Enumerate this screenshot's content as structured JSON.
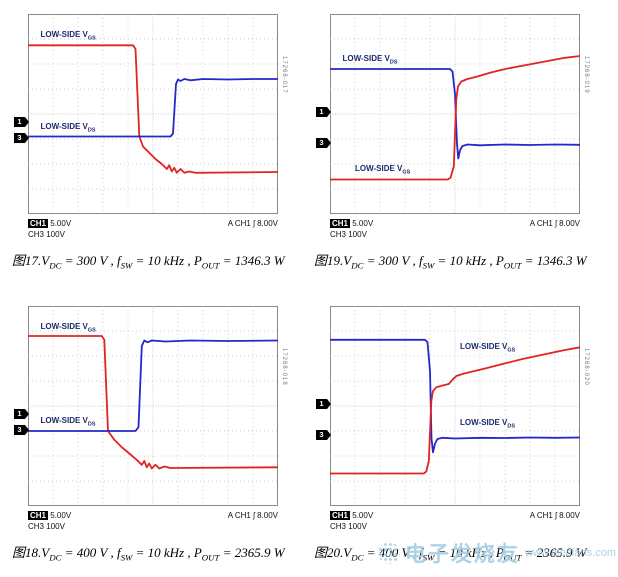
{
  "watermark": {
    "text": "电子发烧友",
    "site": "www.elecfans.com",
    "color": "#a9cfe4"
  },
  "chart_data": [
    {
      "type": "line",
      "figure": "图17",
      "title": "图17. VDC = 300 V , fSW = 10 kHz , POUT = 1346.3 W",
      "caption_segments": [
        {
          "t": "图17.V"
        },
        {
          "sub": "DC"
        },
        {
          "t": " = 300 V , f"
        },
        {
          "sub": "SW"
        },
        {
          "t": " = 10 kHz , P"
        },
        {
          "sub": "OUT"
        },
        {
          "t": " = 1346.3 W"
        }
      ],
      "grid": {
        "x_divisions": 10,
        "y_divisions": 8
      },
      "status": {
        "ch1_label": "CH1",
        "ch1_scale": "5.00V",
        "ch3_scale": "CH3 100V",
        "trigger": "A  CH1 ʃ 8.00V"
      },
      "vertical_code": "17268-017",
      "markers": [
        {
          "label": "1",
          "y_div": 4.3
        },
        {
          "label": "3",
          "y_div": 4.95
        }
      ],
      "trace_labels": [
        {
          "segments": [
            {
              "t": "LOW-SIDE V"
            },
            {
              "sub": "GS"
            }
          ],
          "x_pct": 5,
          "y_pct": 8
        },
        {
          "segments": [
            {
              "t": "LOW-SIDE V"
            },
            {
              "sub": "DS"
            }
          ],
          "x_pct": 5,
          "y_pct": 54
        }
      ],
      "series": [
        {
          "name": "LOW-SIDE VGS (CH1, 5V/div)",
          "color": "#e02424",
          "points_div": [
            [
              0,
              1.25
            ],
            [
              4.2,
              1.25
            ],
            [
              4.3,
              1.4
            ],
            [
              4.45,
              4.9
            ],
            [
              4.6,
              5.3
            ],
            [
              4.85,
              5.55
            ],
            [
              5.1,
              5.8
            ],
            [
              5.35,
              6.0
            ],
            [
              5.55,
              6.2
            ],
            [
              5.65,
              6.05
            ],
            [
              5.75,
              6.3
            ],
            [
              5.85,
              6.15
            ],
            [
              5.95,
              6.35
            ],
            [
              6.1,
              6.2
            ],
            [
              6.25,
              6.35
            ],
            [
              6.45,
              6.3
            ],
            [
              6.7,
              6.35
            ],
            [
              10,
              6.32
            ]
          ]
        },
        {
          "name": "LOW-SIDE VDS (CH3, 100V/div)",
          "color": "#2428c8",
          "points_div": [
            [
              0,
              4.9
            ],
            [
              5.7,
              4.9
            ],
            [
              5.8,
              4.78
            ],
            [
              5.92,
              2.8
            ],
            [
              6.0,
              2.62
            ],
            [
              6.1,
              2.68
            ],
            [
              6.25,
              2.6
            ],
            [
              6.5,
              2.65
            ],
            [
              7,
              2.6
            ],
            [
              8,
              2.62
            ],
            [
              9,
              2.6
            ],
            [
              10,
              2.6
            ]
          ]
        }
      ]
    },
    {
      "type": "line",
      "figure": "图19",
      "title": "图19. VDC = 300 V , fSW = 10 kHz , POUT = 1346.3 W",
      "caption_segments": [
        {
          "t": "图19.V"
        },
        {
          "sub": "DC"
        },
        {
          "t": " = 300 V , f"
        },
        {
          "sub": "SW"
        },
        {
          "t": " = 10 kHz , P"
        },
        {
          "sub": "OUT"
        },
        {
          "t": " = 1346.3 W"
        }
      ],
      "grid": {
        "x_divisions": 10,
        "y_divisions": 8
      },
      "status": {
        "ch1_label": "CH1",
        "ch1_scale": "5.00V",
        "ch3_scale": "CH3 100V",
        "trigger": "A  CH1 ʃ 8.00V"
      },
      "vertical_code": "17268-019",
      "markers": [
        {
          "label": "1",
          "y_div": 3.9
        },
        {
          "label": "3",
          "y_div": 5.15
        }
      ],
      "trace_labels": [
        {
          "segments": [
            {
              "t": "LOW-SIDE V"
            },
            {
              "sub": "DS"
            }
          ],
          "x_pct": 5,
          "y_pct": 20
        },
        {
          "segments": [
            {
              "t": "LOW-SIDE V"
            },
            {
              "sub": "GS"
            }
          ],
          "x_pct": 10,
          "y_pct": 75
        }
      ],
      "series": [
        {
          "name": "LOW-SIDE VDS (CH3, 100V/div)",
          "color": "#2428c8",
          "points_div": [
            [
              0,
              2.2
            ],
            [
              4.8,
              2.2
            ],
            [
              4.9,
              2.3
            ],
            [
              5.0,
              3.2
            ],
            [
              5.08,
              5.2
            ],
            [
              5.13,
              5.78
            ],
            [
              5.2,
              5.45
            ],
            [
              5.3,
              5.28
            ],
            [
              5.5,
              5.22
            ],
            [
              6,
              5.25
            ],
            [
              7,
              5.22
            ],
            [
              8,
              5.24
            ],
            [
              9,
              5.22
            ],
            [
              10,
              5.23
            ]
          ]
        },
        {
          "name": "LOW-SIDE VGS (CH1, 5V/div)",
          "color": "#e02424",
          "points_div": [
            [
              0,
              6.62
            ],
            [
              4.7,
              6.62
            ],
            [
              4.82,
              6.55
            ],
            [
              4.95,
              6.1
            ],
            [
              5.05,
              3.4
            ],
            [
              5.12,
              2.9
            ],
            [
              5.25,
              2.7
            ],
            [
              5.5,
              2.6
            ],
            [
              5.9,
              2.5
            ],
            [
              6.4,
              2.35
            ],
            [
              7.0,
              2.2
            ],
            [
              7.8,
              2.05
            ],
            [
              8.6,
              1.9
            ],
            [
              9.4,
              1.75
            ],
            [
              10,
              1.68
            ]
          ]
        }
      ]
    },
    {
      "type": "line",
      "figure": "图18",
      "title": "图18. VDC = 400 V , fSW = 10 kHz , POUT = 2365.9 W",
      "caption_segments": [
        {
          "t": "图18.V"
        },
        {
          "sub": "DC"
        },
        {
          "t": " = 400 V , f"
        },
        {
          "sub": "SW"
        },
        {
          "t": " = 10 kHz , P"
        },
        {
          "sub": "OUT"
        },
        {
          "t": " = 2365.9 W"
        }
      ],
      "grid": {
        "x_divisions": 10,
        "y_divisions": 8
      },
      "status": {
        "ch1_label": "CH1",
        "ch1_scale": "5.00V",
        "ch3_scale": "CH3 100V",
        "trigger": "A  CH1 ʃ 8.00V"
      },
      "vertical_code": "17268-018",
      "markers": [
        {
          "label": "1",
          "y_div": 4.3
        },
        {
          "label": "3",
          "y_div": 4.95
        }
      ],
      "trace_labels": [
        {
          "segments": [
            {
              "t": "LOW-SIDE V"
            },
            {
              "sub": "GS"
            }
          ],
          "x_pct": 5,
          "y_pct": 8
        },
        {
          "segments": [
            {
              "t": "LOW-SIDE V"
            },
            {
              "sub": "DS"
            }
          ],
          "x_pct": 5,
          "y_pct": 55
        }
      ],
      "series": [
        {
          "name": "LOW-SIDE VGS (CH1, 5V/div)",
          "color": "#e02424",
          "points_div": [
            [
              0,
              1.2
            ],
            [
              2.95,
              1.2
            ],
            [
              3.05,
              1.35
            ],
            [
              3.2,
              5.0
            ],
            [
              3.45,
              5.35
            ],
            [
              3.75,
              5.65
            ],
            [
              4.05,
              5.9
            ],
            [
              4.35,
              6.15
            ],
            [
              4.55,
              6.35
            ],
            [
              4.65,
              6.2
            ],
            [
              4.75,
              6.45
            ],
            [
              4.85,
              6.3
            ],
            [
              4.95,
              6.5
            ],
            [
              5.1,
              6.35
            ],
            [
              5.25,
              6.5
            ],
            [
              5.45,
              6.42
            ],
            [
              5.7,
              6.48
            ],
            [
              10,
              6.45
            ]
          ]
        },
        {
          "name": "LOW-SIDE VDS (CH3, 100V/div)",
          "color": "#2428c8",
          "points_div": [
            [
              0,
              5.0
            ],
            [
              4.3,
              5.0
            ],
            [
              4.42,
              4.85
            ],
            [
              4.55,
              1.6
            ],
            [
              4.65,
              1.38
            ],
            [
              4.78,
              1.45
            ],
            [
              4.95,
              1.38
            ],
            [
              5.5,
              1.42
            ],
            [
              6.5,
              1.38
            ],
            [
              8,
              1.4
            ],
            [
              10,
              1.38
            ]
          ]
        }
      ]
    },
    {
      "type": "line",
      "figure": "图20",
      "title": "图20. VDC = 400 V , fSW = 10 kHz , POUT = 2365.9 W",
      "caption_segments": [
        {
          "t": "图20.V"
        },
        {
          "sub": "DC"
        },
        {
          "t": " = 400 V , f"
        },
        {
          "sub": "SW"
        },
        {
          "t": " = 10 kHz , P"
        },
        {
          "sub": "OUT"
        },
        {
          "t": " = 2365.9 W"
        }
      ],
      "grid": {
        "x_divisions": 10,
        "y_divisions": 8
      },
      "status": {
        "ch1_label": "CH1",
        "ch1_scale": "5.00V",
        "ch3_scale": "CH3 100V",
        "trigger": "A  CH1 ʃ 8.00V"
      },
      "vertical_code": "17268-020",
      "markers": [
        {
          "label": "1",
          "y_div": 3.9
        },
        {
          "label": "3",
          "y_div": 5.15
        }
      ],
      "trace_labels": [
        {
          "segments": [
            {
              "t": "LOW-SIDE V"
            },
            {
              "sub": "GS"
            }
          ],
          "x_pct": 52,
          "y_pct": 18
        },
        {
          "segments": [
            {
              "t": "LOW-SIDE V"
            },
            {
              "sub": "DS"
            }
          ],
          "x_pct": 52,
          "y_pct": 56
        }
      ],
      "series": [
        {
          "name": "LOW-SIDE VDS (CH3, 100V/div)",
          "color": "#2428c8",
          "points_div": [
            [
              0,
              1.35
            ],
            [
              3.8,
              1.35
            ],
            [
              3.9,
              1.45
            ],
            [
              4.0,
              2.6
            ],
            [
              4.06,
              5.3
            ],
            [
              4.12,
              5.85
            ],
            [
              4.2,
              5.5
            ],
            [
              4.3,
              5.32
            ],
            [
              4.5,
              5.27
            ],
            [
              5,
              5.3
            ],
            [
              6,
              5.27
            ],
            [
              7,
              5.28
            ],
            [
              8,
              5.26
            ],
            [
              9,
              5.27
            ],
            [
              10,
              5.26
            ]
          ]
        },
        {
          "name": "LOW-SIDE VGS (CH1, 5V/div)",
          "color": "#e02424",
          "points_div": [
            [
              0,
              6.7
            ],
            [
              3.75,
              6.7
            ],
            [
              3.85,
              6.62
            ],
            [
              3.95,
              6.2
            ],
            [
              4.05,
              3.8
            ],
            [
              4.12,
              3.4
            ],
            [
              4.25,
              3.25
            ],
            [
              4.5,
              3.18
            ],
            [
              4.75,
              3.12
            ],
            [
              4.9,
              2.95
            ],
            [
              5.05,
              2.8
            ],
            [
              5.3,
              2.72
            ],
            [
              5.7,
              2.62
            ],
            [
              6.2,
              2.5
            ],
            [
              6.9,
              2.32
            ],
            [
              7.7,
              2.12
            ],
            [
              8.5,
              1.95
            ],
            [
              9.3,
              1.78
            ],
            [
              10,
              1.65
            ]
          ]
        }
      ]
    }
  ]
}
